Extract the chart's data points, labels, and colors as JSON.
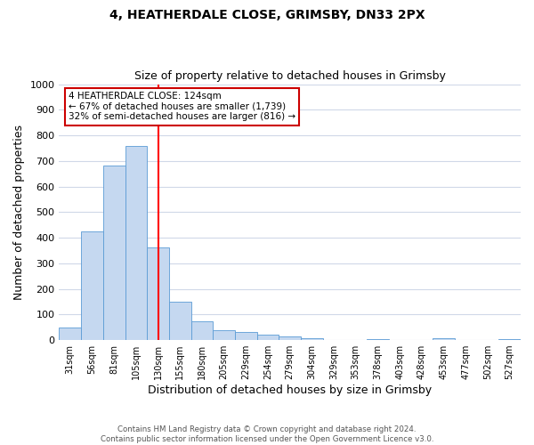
{
  "title": "4, HEATHERDALE CLOSE, GRIMSBY, DN33 2PX",
  "subtitle": "Size of property relative to detached houses in Grimsby",
  "xlabel": "Distribution of detached houses by size in Grimsby",
  "ylabel": "Number of detached properties",
  "bin_labels": [
    "31sqm",
    "56sqm",
    "81sqm",
    "105sqm",
    "130sqm",
    "155sqm",
    "180sqm",
    "205sqm",
    "229sqm",
    "254sqm",
    "279sqm",
    "304sqm",
    "329sqm",
    "353sqm",
    "378sqm",
    "403sqm",
    "428sqm",
    "453sqm",
    "477sqm",
    "502sqm",
    "527sqm"
  ],
  "bar_values": [
    50,
    425,
    683,
    757,
    363,
    150,
    73,
    40,
    30,
    20,
    15,
    8,
    0,
    0,
    5,
    0,
    0,
    8,
    0,
    0,
    5
  ],
  "bar_color": "#c5d8f0",
  "bar_edge_color": "#5b9bd5",
  "vline_x": 4.5,
  "vline_color": "red",
  "ylim": [
    0,
    1000
  ],
  "yticks": [
    0,
    100,
    200,
    300,
    400,
    500,
    600,
    700,
    800,
    900,
    1000
  ],
  "annotation_title": "4 HEATHERDALE CLOSE: 124sqm",
  "annotation_line1": "← 67% of detached houses are smaller (1,739)",
  "annotation_line2": "32% of semi-detached houses are larger (816) →",
  "annotation_box_color": "#ffffff",
  "annotation_border_color": "#cc0000",
  "footer_line1": "Contains HM Land Registry data © Crown copyright and database right 2024.",
  "footer_line2": "Contains public sector information licensed under the Open Government Licence v3.0.",
  "bg_color": "#ffffff",
  "grid_color": "#d0d8e8"
}
